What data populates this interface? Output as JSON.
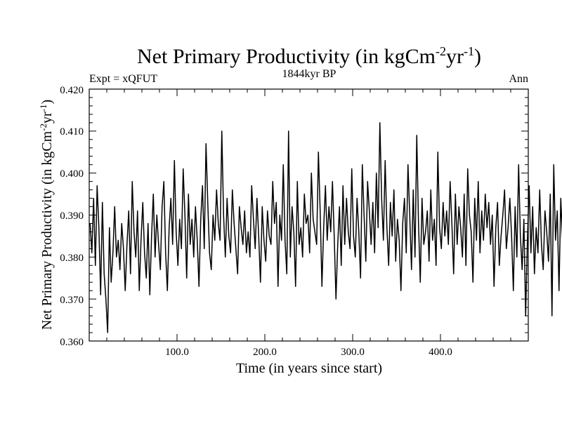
{
  "chart_data": {
    "type": "line",
    "title": {
      "main": "Net Primary Productivity (in kgCm",
      "sup1": "-2",
      "mid": "yr",
      "sup2": "-1",
      "tail": ")"
    },
    "subtitle": "1844kyr BP",
    "left_label": "Expt = xQFUT",
    "right_label": "Ann",
    "xlabel": "Time (in years since start)",
    "ylabel": {
      "main": "Net Primary Productivity (in kgCm",
      "sup1": "-2",
      "mid": "yr",
      "sup2": "-1",
      "tail": ")"
    },
    "xlim": [
      0,
      500
    ],
    "ylim": [
      0.36,
      0.42
    ],
    "x_ticks": [
      100,
      200,
      300,
      400
    ],
    "x_tick_labels": [
      "100.0",
      "200.0",
      "300.0",
      "400.0"
    ],
    "y_ticks": [
      0.36,
      0.37,
      0.38,
      0.39,
      0.4,
      0.41,
      0.42
    ],
    "y_tick_labels": [
      "0.360",
      "0.370",
      "0.380",
      "0.390",
      "0.400",
      "0.410",
      "0.420"
    ],
    "series": [
      {
        "name": "Net Primary Productivity",
        "color": "#000000",
        "x_start": 1,
        "x_step": 2,
        "values": [
          0.388,
          0.381,
          0.394,
          0.378,
          0.397,
          0.387,
          0.371,
          0.393,
          0.376,
          0.37,
          0.362,
          0.387,
          0.374,
          0.381,
          0.392,
          0.38,
          0.384,
          0.377,
          0.388,
          0.382,
          0.372,
          0.383,
          0.391,
          0.376,
          0.398,
          0.386,
          0.38,
          0.391,
          0.372,
          0.384,
          0.393,
          0.381,
          0.375,
          0.388,
          0.371,
          0.385,
          0.395,
          0.38,
          0.39,
          0.383,
          0.377,
          0.392,
          0.398,
          0.381,
          0.372,
          0.387,
          0.394,
          0.383,
          0.403,
          0.386,
          0.378,
          0.389,
          0.382,
          0.401,
          0.39,
          0.375,
          0.395,
          0.383,
          0.389,
          0.38,
          0.392,
          0.384,
          0.373,
          0.389,
          0.397,
          0.382,
          0.407,
          0.393,
          0.381,
          0.377,
          0.39,
          0.384,
          0.396,
          0.388,
          0.384,
          0.41,
          0.39,
          0.38,
          0.394,
          0.385,
          0.381,
          0.396,
          0.388,
          0.382,
          0.376,
          0.392,
          0.387,
          0.383,
          0.391,
          0.381,
          0.386,
          0.38,
          0.397,
          0.389,
          0.382,
          0.394,
          0.385,
          0.374,
          0.392,
          0.384,
          0.379,
          0.391,
          0.385,
          0.383,
          0.398,
          0.388,
          0.393,
          0.373,
          0.39,
          0.384,
          0.402,
          0.384,
          0.376,
          0.41,
          0.38,
          0.392,
          0.386,
          0.373,
          0.398,
          0.383,
          0.387,
          0.38,
          0.395,
          0.388,
          0.39,
          0.381,
          0.4,
          0.389,
          0.386,
          0.383,
          0.405,
          0.391,
          0.373,
          0.387,
          0.397,
          0.384,
          0.392,
          0.386,
          0.398,
          0.385,
          0.37,
          0.383,
          0.392,
          0.378,
          0.397,
          0.383,
          0.394,
          0.386,
          0.382,
          0.401,
          0.385,
          0.38,
          0.394,
          0.386,
          0.375,
          0.402,
          0.39,
          0.379,
          0.398,
          0.391,
          0.383,
          0.393,
          0.381,
          0.4,
          0.387,
          0.412,
          0.394,
          0.384,
          0.403,
          0.387,
          0.378,
          0.393,
          0.385,
          0.396,
          0.379,
          0.389,
          0.384,
          0.372,
          0.388,
          0.394,
          0.381,
          0.402,
          0.39,
          0.377,
          0.396,
          0.38,
          0.409,
          0.388,
          0.374,
          0.394,
          0.383,
          0.386,
          0.391,
          0.379,
          0.396,
          0.384,
          0.389,
          0.378,
          0.405,
          0.387,
          0.382,
          0.393,
          0.385,
          0.391,
          0.383,
          0.398,
          0.388,
          0.376,
          0.395,
          0.383,
          0.392,
          0.387,
          0.38,
          0.395,
          0.378,
          0.401,
          0.39,
          0.386,
          0.374,
          0.394,
          0.384,
          0.398,
          0.381,
          0.391,
          0.384,
          0.395,
          0.387,
          0.393,
          0.383,
          0.39,
          0.373,
          0.387,
          0.393,
          0.378,
          0.385,
          0.39,
          0.396,
          0.382,
          0.387,
          0.394,
          0.385,
          0.372,
          0.392,
          0.38,
          0.402,
          0.385,
          0.377,
          0.389,
          0.366,
          0.384,
          0.397,
          0.381,
          0.392,
          0.376,
          0.387,
          0.381,
          0.396,
          0.383,
          0.377,
          0.391,
          0.386,
          0.379,
          0.395,
          0.366,
          0.402,
          0.384,
          0.391,
          0.372,
          0.394,
          0.384,
          0.375,
          0.389,
          0.376,
          0.39,
          0.383,
          0.385,
          0.391,
          0.38
        ]
      }
    ]
  }
}
